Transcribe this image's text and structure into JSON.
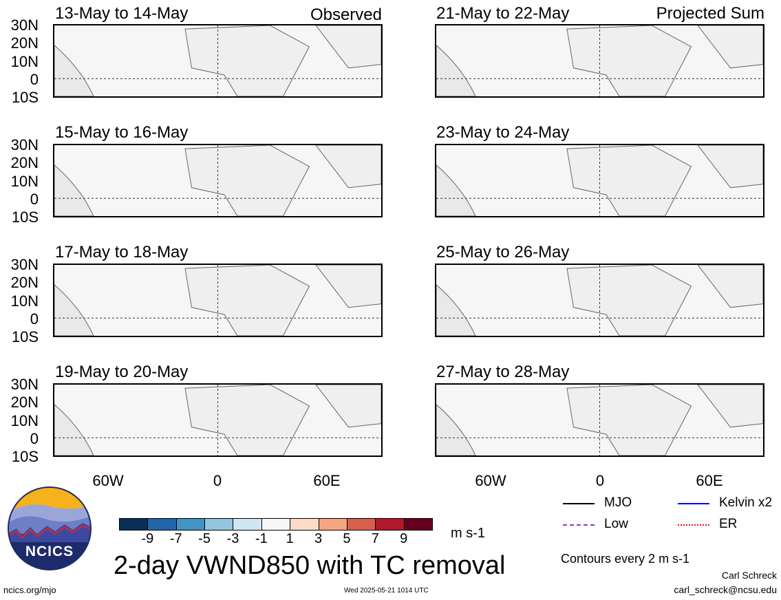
{
  "panels": [
    {
      "title": "13-May to 14-May",
      "tag": "Observed"
    },
    {
      "title": "15-May to 16-May",
      "tag": ""
    },
    {
      "title": "17-May to 18-May",
      "tag": ""
    },
    {
      "title": "19-May to 20-May",
      "tag": ""
    },
    {
      "title": "21-May to 22-May",
      "tag": "Projected Sum"
    },
    {
      "title": "23-May to 24-May",
      "tag": ""
    },
    {
      "title": "25-May to 26-May",
      "tag": ""
    },
    {
      "title": "27-May to 28-May",
      "tag": ""
    }
  ],
  "lat_labels": [
    "30N",
    "20N",
    "10N",
    "0",
    "10S"
  ],
  "lon_labels": [
    "60W",
    "0",
    "60E"
  ],
  "colorbar": {
    "labels": [
      "-9",
      "-7",
      "-5",
      "-3",
      "-1",
      "1",
      "3",
      "5",
      "7",
      "9"
    ],
    "colors": [
      "#0b2e59",
      "#2166ac",
      "#4393c3",
      "#92c5de",
      "#d1e5f0",
      "#f7f7f7",
      "#fddbc7",
      "#f4a582",
      "#d6604d",
      "#b2182b",
      "#67001f"
    ],
    "units": "m s-1"
  },
  "legend": {
    "items": [
      {
        "label": "MJO",
        "color": "#000000"
      },
      {
        "label": "Kelvin x2",
        "color": "#0000ff"
      },
      {
        "label": "Low",
        "color": "#9932cc"
      },
      {
        "label": "ER",
        "color": "#ff0000"
      }
    ],
    "contours": "Contours every 2 m s-1"
  },
  "footer": {
    "main_title": "2-day VWND850 with TC removal",
    "logo_text": "NCICS",
    "site": "ncics.org/mjo",
    "timestamp": "Wed 2025-05-21 1014 UTC",
    "author": "Carl Schreck",
    "email": "carl_schreck@ncsu.edu"
  }
}
